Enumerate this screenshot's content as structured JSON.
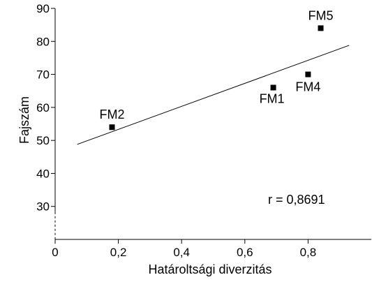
{
  "chart_data": {
    "type": "scatter",
    "xlabel": "Határoltsági diverzitás",
    "ylabel": "Fajszám",
    "xlim": [
      0,
      1.0
    ],
    "ylim": [
      20,
      90
    ],
    "axis_break": "y-axis broken below 30 (dashed)",
    "grid": false,
    "x_ticks": [
      {
        "value": 0,
        "label": "0"
      },
      {
        "value": 0.2,
        "label": "0,2"
      },
      {
        "value": 0.4,
        "label": "0,4"
      },
      {
        "value": 0.6,
        "label": "0,6"
      },
      {
        "value": 0.8,
        "label": "0,8"
      }
    ],
    "y_ticks": [
      {
        "value": 30,
        "label": "30"
      },
      {
        "value": 40,
        "label": "40"
      },
      {
        "value": 50,
        "label": "50"
      },
      {
        "value": 60,
        "label": "60"
      },
      {
        "value": 70,
        "label": "70"
      },
      {
        "value": 80,
        "label": "80"
      },
      {
        "value": 90,
        "label": "90"
      }
    ],
    "points": [
      {
        "label": "FM2",
        "x": 0.18,
        "y": 54,
        "label_position": "above"
      },
      {
        "label": "FM1",
        "x": 0.69,
        "y": 66,
        "label_position": "below"
      },
      {
        "label": "FM4",
        "x": 0.8,
        "y": 70,
        "label_position": "below-right"
      },
      {
        "label": "FM5",
        "x": 0.84,
        "y": 84,
        "label_position": "above"
      }
    ],
    "trendline": {
      "x1": 0.07,
      "y1": 48.8,
      "x2": 0.93,
      "y2": 78.8
    },
    "annotation": "r = 0,8691",
    "marker_color": "#000000",
    "line_color": "#000000"
  }
}
